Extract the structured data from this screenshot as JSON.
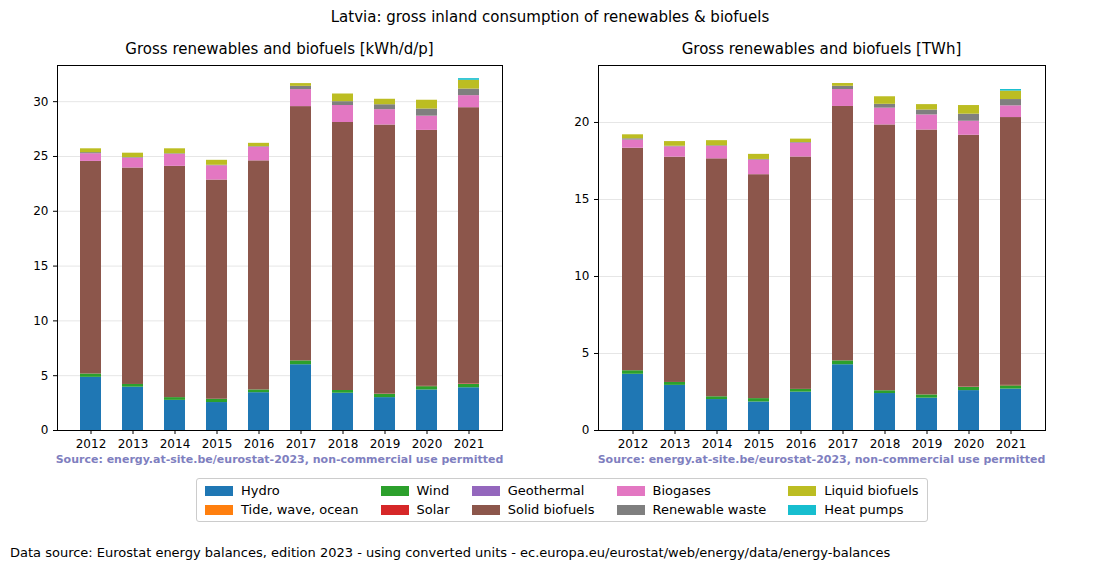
{
  "title": "Latvia: gross inland consumption of renewables & biofuels",
  "footer": "Data source: Eurostat energy balances, edition 2023 - using converted units - ec.europa.eu/eurostat/web/energy/data/energy-balances",
  "chart_data": [
    {
      "type": "bar",
      "stacked": true,
      "grid": true,
      "title": "Gross renewables and biofuels [kWh/d/p]",
      "annotation": "Source: energy.at-site.be/eurostat-2023, non-commercial use permitted",
      "categories": [
        "2012",
        "2013",
        "2014",
        "2015",
        "2016",
        "2017",
        "2018",
        "2019",
        "2020",
        "2021"
      ],
      "ylim": [
        0,
        33.3
      ],
      "yticks": [
        0,
        5,
        10,
        15,
        20,
        25,
        30
      ],
      "series": [
        {
          "name": "Hydro",
          "color": "#1f77b4",
          "values": [
            4.85,
            3.95,
            2.75,
            2.55,
            3.45,
            6.0,
            3.4,
            3.0,
            3.7,
            3.9
          ]
        },
        {
          "name": "Tide, wave, ocean",
          "color": "#ff7f0e",
          "values": [
            0,
            0,
            0,
            0,
            0,
            0,
            0,
            0,
            0,
            0
          ]
        },
        {
          "name": "Wind",
          "color": "#2ca02c",
          "values": [
            0.3,
            0.25,
            0.25,
            0.3,
            0.25,
            0.35,
            0.25,
            0.3,
            0.3,
            0.3
          ]
        },
        {
          "name": "Solar",
          "color": "#d62728",
          "values": [
            0,
            0,
            0,
            0,
            0,
            0,
            0,
            0.02,
            0.03,
            0.05
          ]
        },
        {
          "name": "Geothermal",
          "color": "#9467bd",
          "values": [
            0,
            0,
            0,
            0,
            0,
            0,
            0,
            0,
            0,
            0
          ]
        },
        {
          "name": "Solid biofuels",
          "color": "#8c564b",
          "values": [
            19.4,
            19.75,
            21.1,
            20.0,
            20.9,
            23.2,
            24.45,
            24.55,
            23.35,
            25.2
          ]
        },
        {
          "name": "Biogases",
          "color": "#e377c2",
          "values": [
            0.7,
            0.9,
            1.1,
            1.3,
            1.25,
            1.55,
            1.55,
            1.4,
            1.3,
            1.1
          ]
        },
        {
          "name": "Renewable waste",
          "color": "#7f7f7f",
          "values": [
            0.1,
            0.05,
            0.05,
            0.05,
            0.05,
            0.3,
            0.35,
            0.45,
            0.65,
            0.6
          ]
        },
        {
          "name": "Liquid biofuels",
          "color": "#bcbd22",
          "values": [
            0.35,
            0.4,
            0.45,
            0.45,
            0.3,
            0.25,
            0.7,
            0.5,
            0.8,
            0.8
          ]
        },
        {
          "name": "Heat pumps",
          "color": "#17becf",
          "values": [
            0,
            0,
            0,
            0,
            0,
            0,
            0,
            0,
            0,
            0.15
          ]
        }
      ]
    },
    {
      "type": "bar",
      "stacked": true,
      "grid": true,
      "title": "Gross renewables and biofuels [TWh]",
      "annotation": "Source: energy.at-site.be/eurostat-2023, non-commercial use permitted",
      "categories": [
        "2012",
        "2013",
        "2014",
        "2015",
        "2016",
        "2017",
        "2018",
        "2019",
        "2020",
        "2021"
      ],
      "ylim": [
        0,
        23.7
      ],
      "yticks": [
        0,
        5,
        10,
        15,
        20
      ],
      "series": [
        {
          "name": "Hydro",
          "color": "#1f77b4",
          "values": [
            3.65,
            2.93,
            2.01,
            1.85,
            2.49,
            4.27,
            2.4,
            2.1,
            2.59,
            2.69
          ]
        },
        {
          "name": "Tide, wave, ocean",
          "color": "#ff7f0e",
          "values": [
            0,
            0,
            0,
            0,
            0,
            0,
            0,
            0,
            0,
            0
          ]
        },
        {
          "name": "Wind",
          "color": "#2ca02c",
          "values": [
            0.23,
            0.19,
            0.18,
            0.22,
            0.18,
            0.25,
            0.18,
            0.21,
            0.21,
            0.21
          ]
        },
        {
          "name": "Solar",
          "color": "#d62728",
          "values": [
            0,
            0,
            0,
            0,
            0,
            0,
            0,
            0.01,
            0.02,
            0.03
          ]
        },
        {
          "name": "Geothermal",
          "color": "#9467bd",
          "values": [
            0,
            0,
            0,
            0,
            0,
            0,
            0,
            0,
            0,
            0
          ]
        },
        {
          "name": "Solid biofuels",
          "color": "#8c564b",
          "values": [
            14.45,
            14.63,
            15.45,
            14.54,
            15.09,
            16.52,
            17.26,
            17.19,
            16.35,
            17.39
          ]
        },
        {
          "name": "Biogases",
          "color": "#e377c2",
          "values": [
            0.53,
            0.67,
            0.81,
            0.95,
            0.9,
            1.1,
            1.09,
            0.98,
            0.91,
            0.76
          ]
        },
        {
          "name": "Renewable waste",
          "color": "#7f7f7f",
          "values": [
            0.08,
            0.04,
            0.04,
            0.04,
            0.04,
            0.21,
            0.25,
            0.32,
            0.46,
            0.41
          ]
        },
        {
          "name": "Liquid biofuels",
          "color": "#bcbd22",
          "values": [
            0.26,
            0.3,
            0.33,
            0.33,
            0.22,
            0.18,
            0.49,
            0.35,
            0.56,
            0.55
          ]
        },
        {
          "name": "Heat pumps",
          "color": "#17becf",
          "values": [
            0,
            0,
            0,
            0,
            0,
            0,
            0,
            0,
            0,
            0.1
          ]
        }
      ]
    }
  ]
}
